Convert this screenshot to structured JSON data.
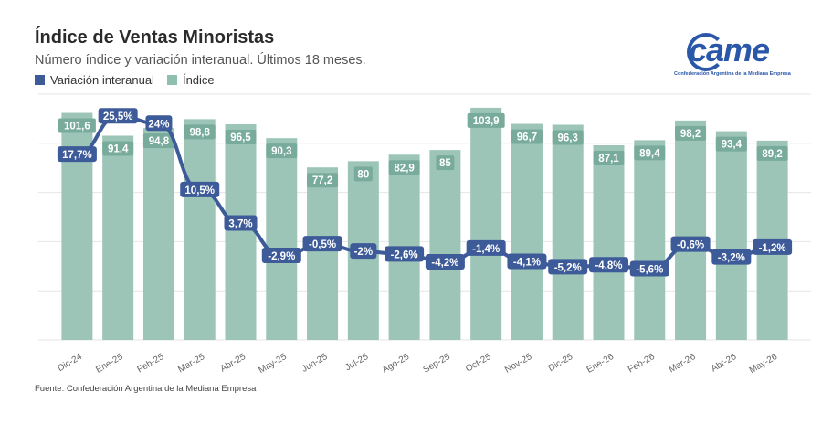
{
  "title": "Índice de Ventas Minoristas",
  "subtitle": "Número índice y variación interanual. Últimos 18 meses.",
  "legend": [
    {
      "label": "Variación interanual",
      "color": "#3d5a99"
    },
    {
      "label": "Índice",
      "color": "#8fbfb0"
    }
  ],
  "logo": {
    "word": "came",
    "tagline": "Confederación Argentina de la Mediana Empresa"
  },
  "source": "Fuente: Confederación Argentina de la Mediana Empresa",
  "colors": {
    "bar": "#9cc5b8",
    "bar_label_bg": "#78ab9b",
    "line": "#3d5a99",
    "grid": "#e6e6e6"
  },
  "chart_data": {
    "type": "bar",
    "categories": [
      "Dic-24",
      "Ene-25",
      "Feb-25",
      "Mar-25",
      "Abr-25",
      "May-25",
      "Jun-25",
      "Jul-25",
      "Ago-25",
      "Sep-25",
      "Oct-25",
      "Nov-25",
      "Dic-25",
      "Ene-26",
      "Feb-26",
      "Mar-26",
      "Abr-26",
      "May-26"
    ],
    "series": [
      {
        "name": "Índice",
        "type": "bar",
        "values": [
          101.6,
          91.4,
          94.8,
          98.8,
          96.5,
          90.3,
          77.2,
          80,
          82.9,
          85,
          103.9,
          96.7,
          96.3,
          87.1,
          89.4,
          98.2,
          93.4,
          89.2
        ],
        "labels": [
          "101,6",
          "91,4",
          "94,8",
          "98,8",
          "96,5",
          "90,3",
          "77,2",
          "80",
          "82,9",
          "85",
          "103,9",
          "96,7",
          "96,3",
          "87,1",
          "89,4",
          "98,2",
          "93,4",
          "89,2"
        ]
      },
      {
        "name": "Variación interanual",
        "type": "line",
        "values": [
          17.7,
          25.5,
          24,
          10.5,
          3.7,
          -2.9,
          -0.5,
          -2,
          -2.6,
          -4.2,
          -1.4,
          -4.1,
          -5.2,
          -4.8,
          -5.6,
          -0.6,
          -3.2,
          -1.2
        ],
        "labels": [
          "17,7%",
          "25,5%",
          "24%",
          "10,5%",
          "3,7%",
          "-2,9%",
          "-0,5%",
          "-2%",
          "-2,6%",
          "-4,2%",
          "-1,4%",
          "-4,1%",
          "-5,2%",
          "-4,8%",
          "-5,6%",
          "-0,6%",
          "-3,2%",
          "-1,2%"
        ]
      }
    ],
    "bar_ylim": [
      0,
      110
    ],
    "line_ylim": [
      -20,
      30
    ],
    "grid": true,
    "legend_position": "top-left"
  }
}
